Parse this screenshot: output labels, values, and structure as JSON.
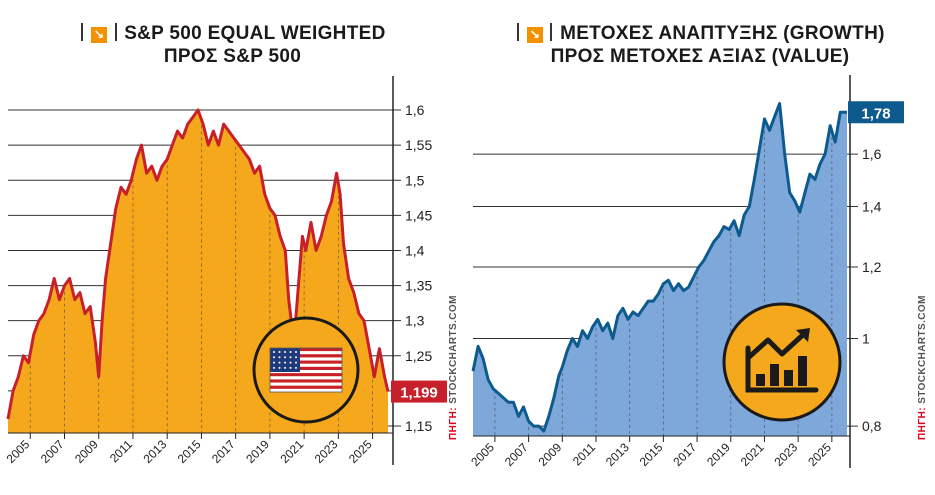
{
  "left_panel": {
    "title_line1": "S&P 500 EQUAL WEIGHTED",
    "title_line2": "ΠΡΟΣ S&P 500",
    "source_prefix": "ΠΗΓΗ:",
    "source_name": "STOCKCHARTS.COM",
    "fill_color": "#f6a81c",
    "line_color": "#c8202b",
    "label_color": "#c8202b",
    "icon": "us-flag-icon"
  },
  "right_panel": {
    "title_line1": "ΜΕΤΟΧΕΣ ΑΝΑΠΤΥΞΗΣ (GROWTH)",
    "title_line2": "ΠΡΟΣ ΜΕΤΟΧΕΣ ΑΞΙΑΣ (VALUE)",
    "source_prefix": "ΠΗΓΗ:",
    "source_name": "STOCKCHARTS.COM",
    "fill_color": "#7fa8da",
    "line_color": "#0d5a8e",
    "label_color": "#0d5a8e",
    "icon": "growth-chart-icon"
  },
  "chart_data": [
    {
      "type": "area",
      "title": "S&P 500 EQUAL WEIGHTED ΠΡΟΣ S&P 500",
      "x_ticks": [
        "2005",
        "2007",
        "2009",
        "2011",
        "2013",
        "2015",
        "2017",
        "2019",
        "2021",
        "2023",
        "2025"
      ],
      "y_ticks": [
        "1,6",
        "1,55",
        "1,5",
        "1,45",
        "1,4",
        "1,35",
        "1,3",
        "1,25",
        "1,2",
        "1,15"
      ],
      "y_tick_values": [
        1.6,
        1.55,
        1.5,
        1.45,
        1.4,
        1.35,
        1.3,
        1.25,
        1.2,
        1.15
      ],
      "ylim": [
        1.14,
        1.62
      ],
      "xlim": [
        2003.7,
        2025.9
      ],
      "last_value_label": "1,199",
      "last_value": 1.199,
      "grid": "horizontal",
      "x": [
        2003.7,
        2004.0,
        2004.3,
        2004.6,
        2004.9,
        2005.2,
        2005.5,
        2005.8,
        2006.1,
        2006.4,
        2006.7,
        2007.0,
        2007.3,
        2007.6,
        2007.9,
        2008.2,
        2008.5,
        2008.8,
        2009.0,
        2009.2,
        2009.4,
        2009.7,
        2010.0,
        2010.3,
        2010.6,
        2010.9,
        2011.2,
        2011.5,
        2011.8,
        2012.1,
        2012.4,
        2012.7,
        2013.0,
        2013.3,
        2013.6,
        2013.9,
        2014.2,
        2014.5,
        2014.8,
        2015.1,
        2015.4,
        2015.7,
        2016.0,
        2016.3,
        2016.6,
        2016.9,
        2017.2,
        2017.5,
        2017.8,
        2018.1,
        2018.4,
        2018.7,
        2019.0,
        2019.3,
        2019.6,
        2019.9,
        2020.1,
        2020.3,
        2020.5,
        2020.7,
        2020.9,
        2021.1,
        2021.4,
        2021.7,
        2022.0,
        2022.3,
        2022.6,
        2022.9,
        2023.1,
        2023.3,
        2023.6,
        2023.9,
        2024.2,
        2024.5,
        2024.8,
        2025.1,
        2025.4,
        2025.7,
        2025.9
      ],
      "values": [
        1.16,
        1.2,
        1.22,
        1.25,
        1.24,
        1.28,
        1.3,
        1.31,
        1.33,
        1.36,
        1.33,
        1.35,
        1.36,
        1.33,
        1.34,
        1.31,
        1.32,
        1.27,
        1.22,
        1.3,
        1.36,
        1.41,
        1.46,
        1.49,
        1.48,
        1.5,
        1.53,
        1.55,
        1.51,
        1.52,
        1.5,
        1.52,
        1.53,
        1.55,
        1.57,
        1.56,
        1.58,
        1.59,
        1.6,
        1.58,
        1.55,
        1.57,
        1.55,
        1.58,
        1.57,
        1.56,
        1.55,
        1.54,
        1.53,
        1.51,
        1.52,
        1.48,
        1.46,
        1.45,
        1.42,
        1.4,
        1.33,
        1.29,
        1.3,
        1.36,
        1.42,
        1.4,
        1.44,
        1.4,
        1.42,
        1.45,
        1.47,
        1.51,
        1.48,
        1.41,
        1.36,
        1.34,
        1.31,
        1.3,
        1.26,
        1.22,
        1.26,
        1.22,
        1.199
      ]
    },
    {
      "type": "area",
      "title": "ΜΕΤΟΧΕΣ ΑΝΑΠΤΥΞΗΣ (GROWTH) ΠΡΟΣ ΜΕΤΟΧΕΣ ΑΞΙΑΣ (VALUE)",
      "x_ticks": [
        "2005",
        "2007",
        "2009",
        "2011",
        "2013",
        "2015",
        "2017",
        "2019",
        "2021",
        "2023",
        "2025"
      ],
      "y_ticks": [
        "1,6",
        "1,4",
        "1,2",
        "1",
        "0,8"
      ],
      "y_tick_values": [
        1.6,
        1.4,
        1.2,
        1.0,
        0.8
      ],
      "scale": "log",
      "ylim": [
        0.78,
        1.86
      ],
      "xlim": [
        2003.7,
        2025.9
      ],
      "last_value_label": "1,78",
      "last_value": 1.78,
      "grid": "horizontal",
      "x": [
        2003.7,
        2004.0,
        2004.3,
        2004.6,
        2004.9,
        2005.2,
        2005.5,
        2005.8,
        2006.1,
        2006.4,
        2006.7,
        2007.0,
        2007.3,
        2007.6,
        2007.9,
        2008.2,
        2008.5,
        2008.8,
        2009.0,
        2009.3,
        2009.6,
        2009.9,
        2010.2,
        2010.5,
        2010.8,
        2011.1,
        2011.4,
        2011.7,
        2012.0,
        2012.3,
        2012.6,
        2012.9,
        2013.2,
        2013.5,
        2013.8,
        2014.1,
        2014.4,
        2014.7,
        2015.0,
        2015.3,
        2015.6,
        2015.9,
        2016.2,
        2016.5,
        2016.8,
        2017.1,
        2017.4,
        2017.7,
        2018.0,
        2018.3,
        2018.6,
        2018.9,
        2019.2,
        2019.5,
        2019.8,
        2020.1,
        2020.4,
        2020.7,
        2021.0,
        2021.3,
        2021.6,
        2021.9,
        2022.2,
        2022.5,
        2022.8,
        2023.1,
        2023.4,
        2023.7,
        2024.0,
        2024.3,
        2024.6,
        2024.9,
        2025.2,
        2025.5,
        2025.9
      ],
      "values": [
        0.92,
        0.98,
        0.95,
        0.9,
        0.88,
        0.87,
        0.86,
        0.85,
        0.85,
        0.82,
        0.84,
        0.81,
        0.8,
        0.8,
        0.79,
        0.82,
        0.86,
        0.91,
        0.93,
        0.97,
        1.0,
        0.98,
        1.02,
        1.0,
        1.03,
        1.05,
        1.02,
        1.04,
        1.0,
        1.06,
        1.08,
        1.05,
        1.07,
        1.06,
        1.08,
        1.1,
        1.1,
        1.12,
        1.15,
        1.16,
        1.13,
        1.15,
        1.13,
        1.14,
        1.17,
        1.2,
        1.22,
        1.25,
        1.28,
        1.3,
        1.33,
        1.32,
        1.35,
        1.3,
        1.37,
        1.4,
        1.5,
        1.62,
        1.75,
        1.7,
        1.76,
        1.82,
        1.6,
        1.45,
        1.42,
        1.38,
        1.45,
        1.52,
        1.5,
        1.56,
        1.6,
        1.72,
        1.65,
        1.78,
        1.78
      ]
    }
  ]
}
